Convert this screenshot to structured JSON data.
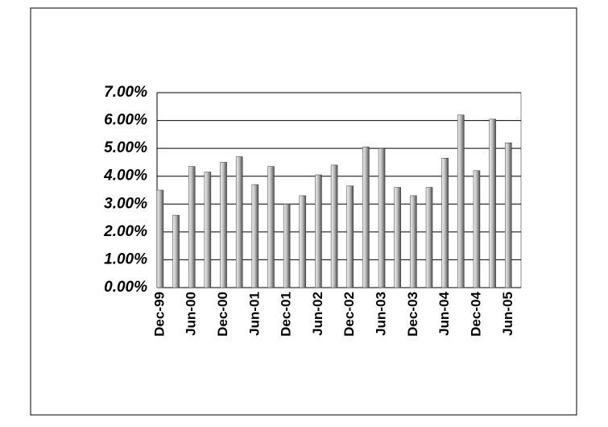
{
  "chart_data": {
    "type": "bar",
    "categories": [
      "Dec-99",
      null,
      "Jun-00",
      null,
      "Dec-00",
      null,
      "Jun-01",
      null,
      "Dec-01",
      null,
      "Jun-02",
      null,
      "Dec-02",
      null,
      "Jun-03",
      null,
      "Dec-03",
      null,
      "Jun-04",
      null,
      "Dec-04",
      null,
      "Jun-05"
    ],
    "values": [
      3.5,
      2.6,
      4.35,
      4.15,
      4.5,
      4.7,
      3.7,
      4.35,
      3.0,
      3.3,
      4.05,
      4.4,
      3.65,
      5.05,
      5.0,
      3.6,
      3.3,
      3.6,
      4.65,
      6.2,
      4.2,
      6.05,
      5.2
    ],
    "color": "#9a9a9a",
    "ylim": [
      0,
      7
    ],
    "yticks": [
      {
        "value": 0,
        "label": "0.00%"
      },
      {
        "value": 1,
        "label": "1.00%"
      },
      {
        "value": 2,
        "label": "2.00%"
      },
      {
        "value": 3,
        "label": "3.00%"
      },
      {
        "value": 4,
        "label": "4.00%"
      },
      {
        "value": 5,
        "label": "5.00%"
      },
      {
        "value": 6,
        "label": "6.00%"
      },
      {
        "value": 7,
        "label": "7.00%"
      }
    ],
    "grid": true
  }
}
